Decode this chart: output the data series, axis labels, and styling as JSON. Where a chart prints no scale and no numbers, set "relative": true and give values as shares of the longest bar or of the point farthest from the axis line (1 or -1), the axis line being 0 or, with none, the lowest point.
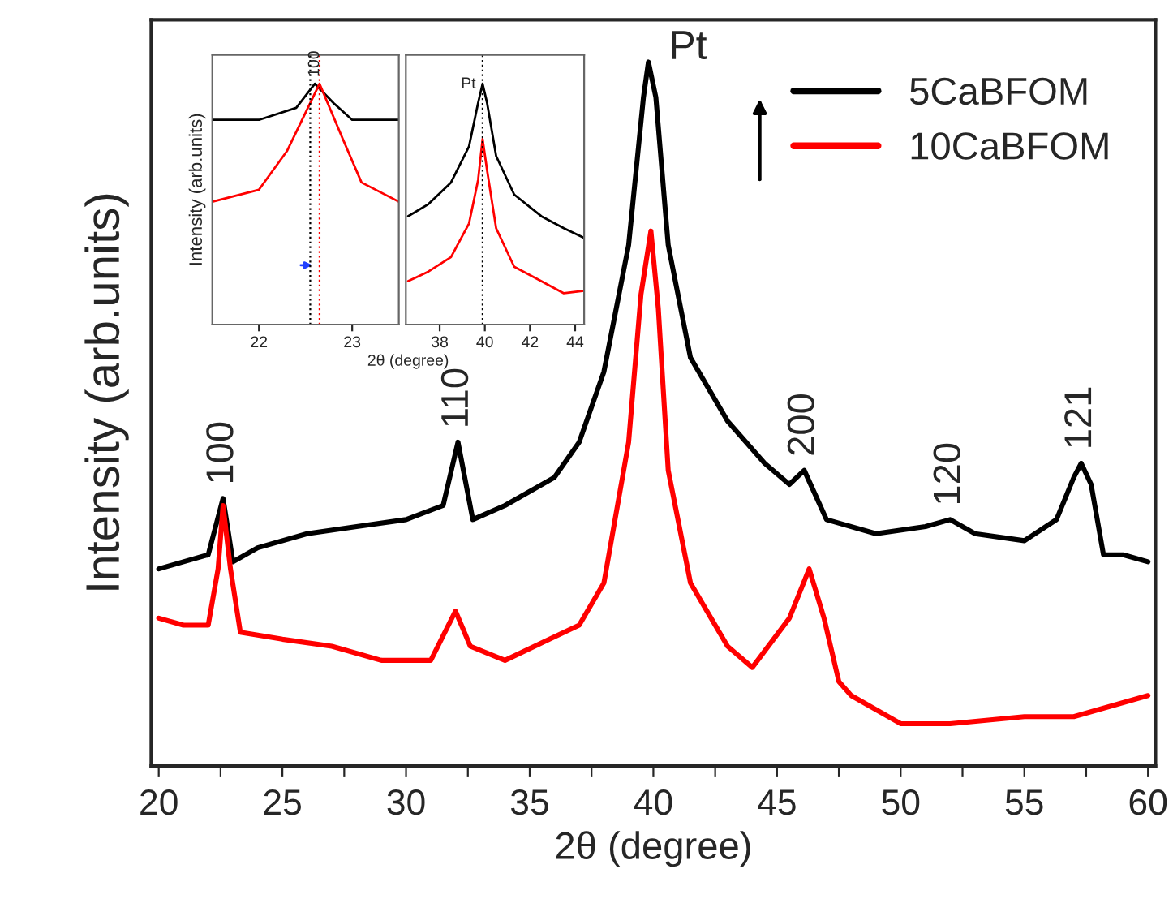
{
  "chart_data": [
    {
      "type": "line",
      "relative": true,
      "xlabel": "2θ (degree)",
      "ylabel": "Intensity (arb.units)",
      "xlim": [
        19.7,
        60.3
      ],
      "xticks": [
        20,
        {
          "value": 22.5,
          "label": null
        },
        25,
        {
          "value": 27.5,
          "label": null
        },
        30,
        {
          "value": 32.5,
          "label": null
        },
        35,
        {
          "value": 37.5,
          "label": null
        },
        40,
        {
          "value": 42.5,
          "label": null
        },
        45,
        {
          "value": 47.5,
          "label": null
        },
        50,
        {
          "value": 52.5,
          "label": null
        },
        55,
        {
          "value": 57.5,
          "label": null
        },
        60
      ],
      "legend": "top right",
      "grid": false,
      "marker": "none",
      "line_style": "solid",
      "series": [
        {
          "name": "5CaBFOM",
          "color": "#000000",
          "x": [
            20,
            21,
            22,
            22.6,
            23,
            24,
            26,
            28,
            30,
            31.5,
            32.1,
            32.7,
            34,
            36,
            37,
            38,
            39,
            39.6,
            39.8,
            40.1,
            40.6,
            41.5,
            43,
            44.5,
            45.5,
            46.1,
            47,
            49,
            51,
            52,
            53,
            55,
            56.3,
            57.0,
            57.3,
            57.7,
            58.2,
            59,
            60
          ],
          "values": [
            0.28,
            0.29,
            0.3,
            0.38,
            0.29,
            0.31,
            0.33,
            0.34,
            0.35,
            0.37,
            0.46,
            0.35,
            0.37,
            0.41,
            0.46,
            0.56,
            0.74,
            0.95,
            1.0,
            0.95,
            0.74,
            0.58,
            0.49,
            0.43,
            0.4,
            0.42,
            0.35,
            0.33,
            0.34,
            0.35,
            0.33,
            0.32,
            0.35,
            0.41,
            0.43,
            0.4,
            0.3,
            0.3,
            0.29
          ]
        },
        {
          "name": "10CaBFOM",
          "color": "#ff0000",
          "x": [
            20,
            21,
            22,
            22.4,
            22.6,
            22.9,
            23.3,
            25,
            27,
            29,
            31,
            32.0,
            32.6,
            34,
            35.8,
            37,
            38,
            39,
            39.5,
            39.9,
            40.2,
            40.6,
            41.5,
            43,
            44,
            45.5,
            46.3,
            46.9,
            47.5,
            48,
            50,
            52,
            55,
            57,
            60
          ],
          "values": [
            0.21,
            0.2,
            0.2,
            0.28,
            0.37,
            0.28,
            0.19,
            0.18,
            0.17,
            0.15,
            0.15,
            0.22,
            0.17,
            0.15,
            0.18,
            0.2,
            0.26,
            0.46,
            0.67,
            0.76,
            0.65,
            0.42,
            0.26,
            0.17,
            0.14,
            0.21,
            0.28,
            0.21,
            0.12,
            0.1,
            0.06,
            0.06,
            0.07,
            0.07,
            0.1
          ]
        }
      ],
      "annotations": [
        {
          "text": "Pt",
          "x": 39.8,
          "y": 1.0
        },
        {
          "text": "100",
          "x": 22.6,
          "y": 0.38
        },
        {
          "text": "110",
          "x": 32.1,
          "y": 0.46
        },
        {
          "text": "200",
          "x": 46.1,
          "y": 0.42
        },
        {
          "text": "120",
          "x": 52,
          "y": 0.35
        },
        {
          "text": "121",
          "x": 57.3,
          "y": 0.43
        }
      ]
    },
    {
      "type": "line",
      "relative": true,
      "xlabel": "2θ (degree)",
      "ylabel": "Intensity (arb.units)",
      "xlim": [
        21.5,
        23.5
      ],
      "xticks": [
        22,
        23
      ],
      "marker": "none",
      "line_style": "solid",
      "series": [
        {
          "color": "#000000",
          "x": [
            21.5,
            22,
            22.4,
            22.6,
            22.8,
            23.0,
            23.5
          ],
          "values": [
            0.85,
            0.85,
            0.9,
            1.0,
            0.92,
            0.85,
            0.85
          ]
        },
        {
          "color": "#ff0000",
          "x": [
            21.5,
            22.0,
            22.3,
            22.65,
            22.9,
            23.1,
            23.5
          ],
          "values": [
            0.51,
            0.56,
            0.72,
            1.0,
            0.77,
            0.59,
            0.51
          ]
        }
      ],
      "ref_lines": [
        {
          "axis": "x",
          "value": 22.55,
          "color": "#000000",
          "line_style": "dotted"
        },
        {
          "axis": "x",
          "value": 22.65,
          "color": "#ff0000",
          "line_style": "dotted"
        }
      ],
      "annotations": [
        {
          "text": "100",
          "x": 22.6,
          "y": 1.0
        }
      ]
    },
    {
      "type": "line",
      "relative": true,
      "xlim": [
        36.5,
        44.4
      ],
      "xticks": [
        38,
        40,
        42,
        44
      ],
      "marker": "none",
      "line_style": "solid",
      "series": [
        {
          "color": "#000000",
          "x": [
            36.6,
            37.5,
            38.5,
            39.3,
            39.7,
            39.9,
            40.1,
            40.5,
            41.3,
            42.5,
            43.5,
            44.4
          ],
          "values": [
            0.45,
            0.5,
            0.59,
            0.74,
            0.92,
            1.0,
            0.92,
            0.7,
            0.54,
            0.45,
            0.4,
            0.36
          ]
        },
        {
          "color": "#ff0000",
          "x": [
            36.6,
            37.5,
            38.5,
            39.3,
            39.7,
            39.9,
            40.1,
            40.5,
            41.3,
            42.5,
            43.5,
            44.4
          ],
          "values": [
            0.18,
            0.22,
            0.28,
            0.42,
            0.6,
            0.77,
            0.64,
            0.4,
            0.24,
            0.18,
            0.13,
            0.14
          ]
        }
      ],
      "ref_lines": [
        {
          "axis": "x",
          "value": 39.9,
          "color": "#000000",
          "line_style": "dotted"
        }
      ],
      "annotations": [
        {
          "text": "Pt",
          "x": 39.9,
          "y": 1.0
        }
      ]
    }
  ]
}
